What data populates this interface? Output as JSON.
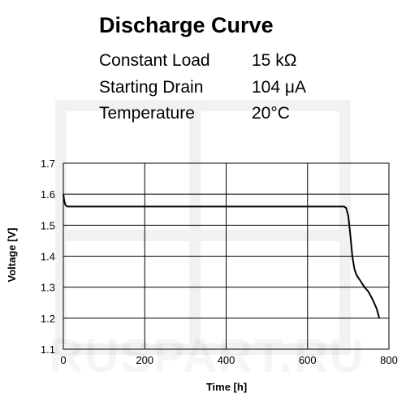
{
  "header": {
    "title": "Discharge Curve",
    "specs": [
      {
        "label": "Constant Load",
        "value": "15 kΩ"
      },
      {
        "label": "Starting Drain",
        "value": "104 μA"
      },
      {
        "label": "Temperature",
        "value": "20°C"
      }
    ]
  },
  "watermark": {
    "text": "RUSPART.RU"
  },
  "chart_data": {
    "type": "line",
    "title": "Discharge Curve",
    "xlabel": "Time [h]",
    "ylabel": "Voltage [V]",
    "xlim": [
      0,
      800
    ],
    "ylim": [
      1.1,
      1.7
    ],
    "xticks": [
      0,
      200,
      400,
      600,
      800
    ],
    "xtick_labels": [
      "0",
      "200",
      "400",
      "600",
      "800"
    ],
    "yticks": [
      1.1,
      1.2,
      1.3,
      1.4,
      1.5,
      1.6,
      1.7
    ],
    "ytick_labels": [
      "1.1",
      "1.2",
      "1.3",
      "1.4",
      "1.5",
      "1.6",
      "1.7"
    ],
    "grid": true,
    "series": [
      {
        "x": [
          0,
          2,
          5,
          10,
          20,
          50,
          100,
          200,
          300,
          400,
          500,
          600,
          650,
          690,
          695,
          700,
          705,
          710,
          715,
          720,
          730,
          740,
          750,
          760,
          770,
          776
        ],
        "y": [
          1.6,
          1.58,
          1.565,
          1.56,
          1.56,
          1.56,
          1.56,
          1.56,
          1.56,
          1.56,
          1.56,
          1.56,
          1.56,
          1.56,
          1.555,
          1.53,
          1.47,
          1.4,
          1.36,
          1.34,
          1.32,
          1.3,
          1.285,
          1.26,
          1.23,
          1.2
        ]
      }
    ]
  }
}
